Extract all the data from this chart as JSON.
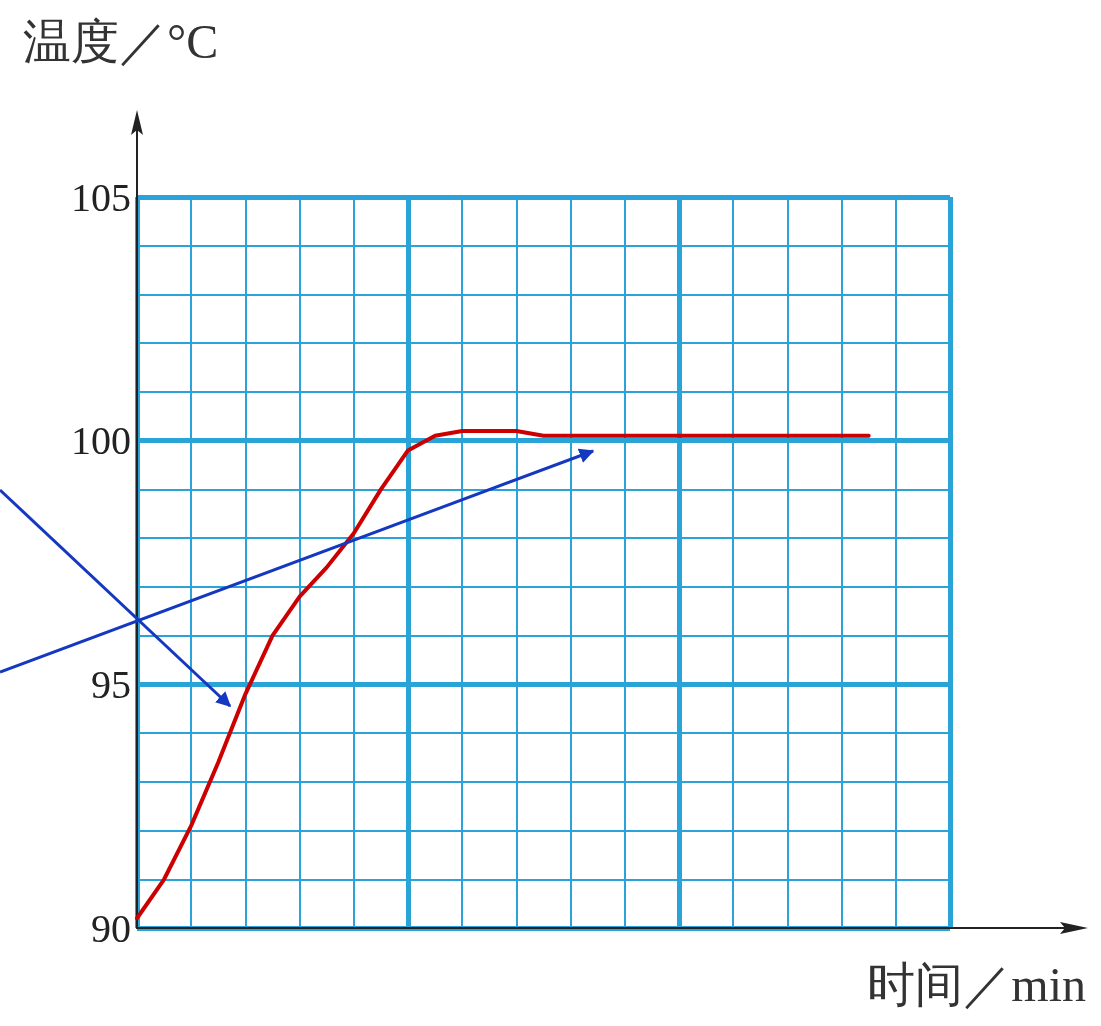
{
  "chart_data": {
    "type": "line",
    "xlabel": "时间／min",
    "ylabel": "温度／°C",
    "categories": [
      null,
      null,
      null,
      null,
      null,
      null,
      null,
      null,
      null,
      null,
      null,
      null,
      null,
      null,
      null,
      null,
      null,
      null,
      null,
      null,
      null,
      null,
      null,
      null,
      null,
      null,
      null,
      null,
      null,
      null,
      null
    ],
    "ylim": [
      90,
      105
    ],
    "yticks": [
      90,
      95,
      100,
      105
    ],
    "tick_labels": "y",
    "grid": true,
    "marker": "none",
    "line_style": "solid",
    "series": [
      {
        "color": "#cc0000",
        "values": [
          90.2,
          91.0,
          92.1,
          93.4,
          94.8,
          96.0,
          96.8,
          97.4,
          98.1,
          99.0,
          99.8,
          100.1,
          100.2,
          100.2,
          100.2,
          100.1,
          100.1,
          100.1,
          100.1,
          100.1,
          100.1,
          100.1,
          100.1,
          100.1,
          100.1,
          100.1,
          100.1,
          100.1,
          null,
          null,
          null
        ]
      }
    ]
  }
}
